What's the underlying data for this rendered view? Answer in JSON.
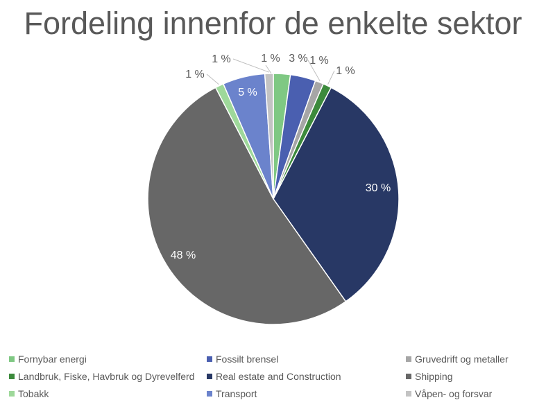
{
  "title": "Fordeling innenfor de enkelte sektor",
  "chart_data": {
    "type": "pie",
    "title": "Fordeling innenfor de enkelte sektor",
    "start_angle_deg": 0,
    "direction": "clockwise",
    "legend_position": "bottom",
    "slices": [
      {
        "name": "Fornybar energi",
        "value": 2,
        "label": "",
        "color": "#7FC883"
      },
      {
        "name": "Fossilt brensel",
        "value": 3,
        "label": "3 %",
        "color": "#4A5FB0"
      },
      {
        "name": "Gruvedrift og metaller",
        "value": 1,
        "label": "1 %",
        "color": "#A6A6A6"
      },
      {
        "name": "Landbruk, Fiske, Havbruk og Dyrevelferd",
        "value": 1,
        "label": "1 %",
        "color": "#3C8A3C"
      },
      {
        "name": "Real estate and Construction",
        "value": 30,
        "label": "30 %",
        "color": "#283865"
      },
      {
        "name": "Shipping",
        "value": 48,
        "label": "48 %",
        "color": "#676767"
      },
      {
        "name": "Tobakk",
        "value": 1,
        "label": "1 %",
        "color": "#9ED89A"
      },
      {
        "name": "Transport",
        "value": 5,
        "label": "5 %",
        "color": "#6B83CC"
      },
      {
        "name": "Våpen- og forsvar",
        "value": 1,
        "label": "1 %",
        "color": "#C3C3C3"
      }
    ],
    "extra_labels": [
      "1 %"
    ]
  }
}
